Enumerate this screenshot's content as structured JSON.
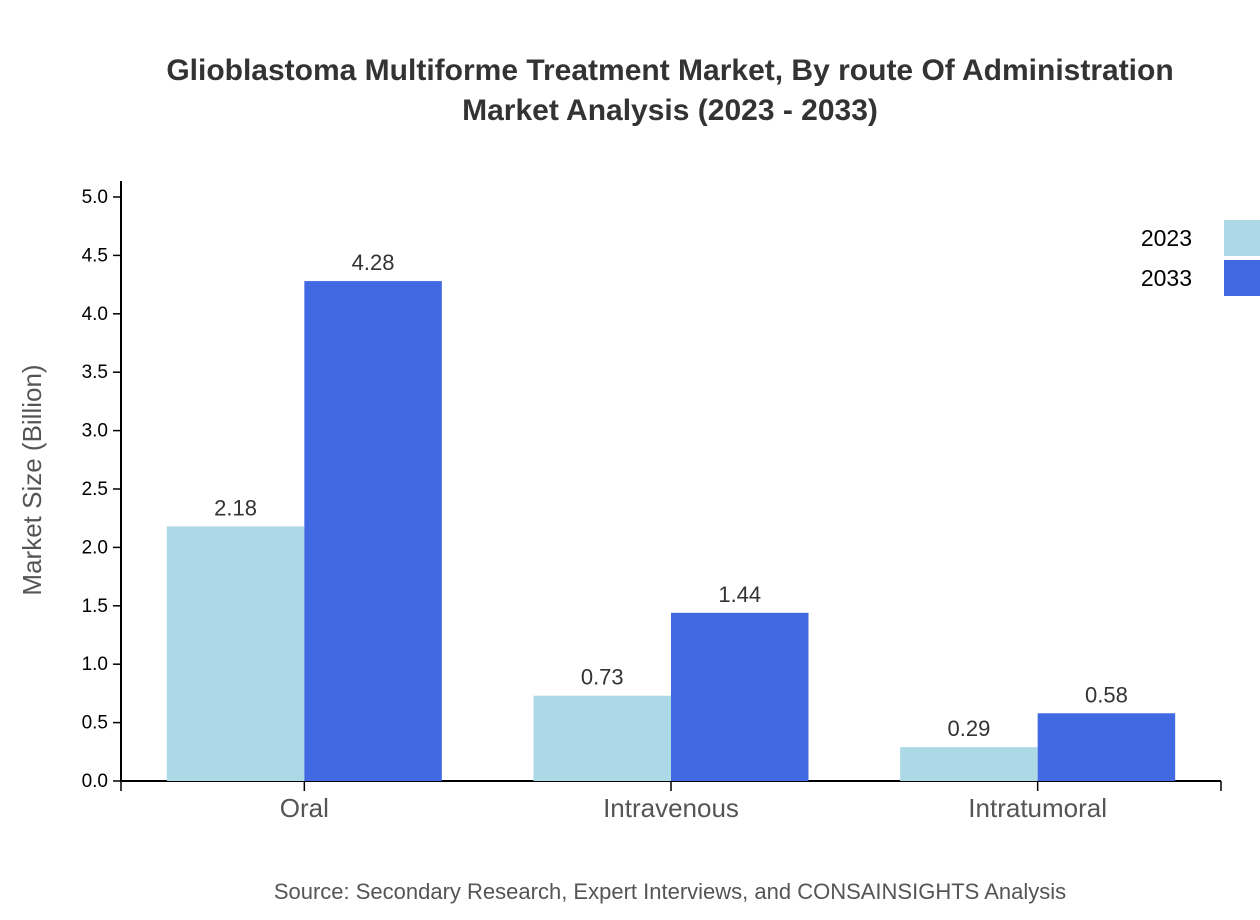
{
  "chart_data": {
    "type": "bar",
    "title": "Glioblastoma Multiforme Treatment Market, By route Of Administration",
    "subtitle": "Market Analysis (2023 - 2033)",
    "xlabel": "",
    "ylabel": "Market Size (Billion)",
    "ylim": [
      0,
      5.0
    ],
    "yticks": [
      "0.0",
      "0.5",
      "1.0",
      "1.5",
      "2.0",
      "2.5",
      "3.0",
      "3.5",
      "4.0",
      "4.5",
      "5.0"
    ],
    "categories": [
      "Oral",
      "Intravenous",
      "Intratumoral"
    ],
    "series": [
      {
        "name": "2023",
        "values": [
          2.18,
          0.73,
          0.29
        ],
        "color": "#add8e6"
      },
      {
        "name": "2033",
        "values": [
          4.28,
          1.44,
          0.58
        ],
        "color": "#4169e1"
      }
    ],
    "grid": false,
    "legend": "top-right",
    "source": "Source: Secondary Research, Expert Interviews, and CONSAINSIGHTS Analysis"
  }
}
